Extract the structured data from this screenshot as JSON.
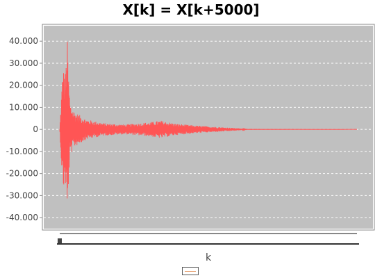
{
  "chart_data": {
    "type": "line",
    "title": "X[k] = X[k+5000]",
    "xlabel": "k",
    "ylabel": "",
    "ylim": [
      -45000,
      47000
    ],
    "yticks": [
      40000,
      30000,
      20000,
      10000,
      0,
      -10000,
      -20000,
      -30000,
      -40000
    ],
    "ytick_labels": [
      "40.000",
      "30.000",
      "20.000",
      "10.000",
      "0",
      "-10.000",
      "-20.000",
      "-30.000",
      "-40.000"
    ],
    "grid": true,
    "background": "#c0c0c0",
    "series": [
      {
        "name": "",
        "color": "#ff5555",
        "envelope": [
          {
            "k": 0,
            "amp": 0
          },
          {
            "k": 0.01,
            "amp": 28000
          },
          {
            "k": 0.02,
            "amp": 26000
          },
          {
            "k": 0.025,
            "amp": 43000
          },
          {
            "k": 0.03,
            "amp": 24000
          },
          {
            "k": 0.035,
            "amp": 12000
          },
          {
            "k": 0.05,
            "amp": 8000
          },
          {
            "k": 0.09,
            "amp": 4500
          },
          {
            "k": 0.15,
            "amp": 2800
          },
          {
            "k": 0.22,
            "amp": 2200
          },
          {
            "k": 0.3,
            "amp": 3200
          },
          {
            "k": 0.34,
            "amp": 4000
          },
          {
            "k": 0.39,
            "amp": 2600
          },
          {
            "k": 0.45,
            "amp": 1800
          },
          {
            "k": 0.52,
            "amp": 1200
          },
          {
            "k": 0.6,
            "amp": 500
          },
          {
            "k": 0.63,
            "amp": 50
          },
          {
            "k": 1,
            "amp": 0
          }
        ]
      }
    ]
  },
  "legend": {
    "swatch_color": "#e8a070"
  }
}
